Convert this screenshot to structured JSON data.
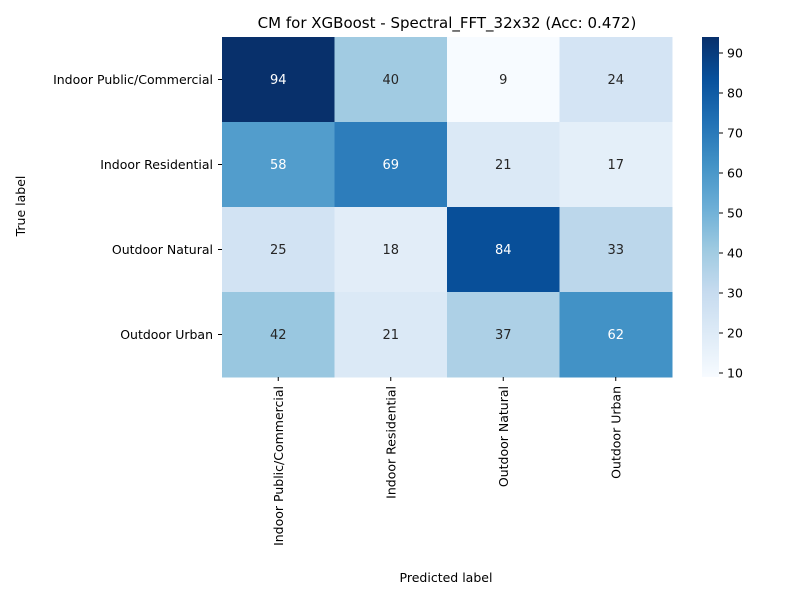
{
  "chart_data": {
    "type": "heatmap",
    "title": "CM for XGBoost - Spectral_FFT_32x32 (Acc: 0.472)",
    "xlabel": "Predicted label",
    "ylabel": "True label",
    "row_labels": [
      "Indoor Public/Commercial",
      "Indoor Residential",
      "Outdoor Natural",
      "Outdoor Urban"
    ],
    "col_labels": [
      "Indoor Public/Commercial",
      "Indoor Residential",
      "Outdoor Natural",
      "Outdoor Urban"
    ],
    "matrix": [
      [
        94,
        40,
        9,
        24
      ],
      [
        58,
        69,
        21,
        17
      ],
      [
        25,
        18,
        84,
        33
      ],
      [
        42,
        21,
        37,
        62
      ]
    ],
    "colorbar": {
      "min": 9,
      "max": 94,
      "ticks": [
        10,
        20,
        30,
        40,
        50,
        60,
        70,
        80,
        90
      ]
    },
    "colormap": "Blues",
    "colors": {
      "low": "#f7fbff",
      "high": "#08306b",
      "dark_text": "#262626",
      "light_text": "#ffffff"
    }
  }
}
